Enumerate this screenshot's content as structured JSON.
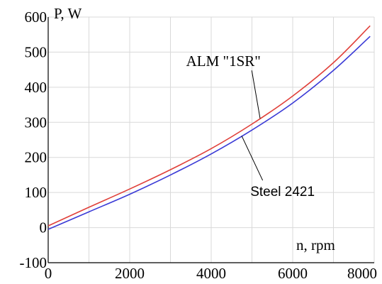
{
  "chart_data": {
    "type": "line",
    "xlabel": "n, rpm",
    "ylabel": "P, W",
    "xlim": [
      0,
      8000
    ],
    "ylim": [
      -100,
      600
    ],
    "xticks": [
      0,
      2000,
      4000,
      6000,
      8000
    ],
    "yticks": [
      -100,
      0,
      100,
      200,
      300,
      400,
      500,
      600
    ],
    "grid": true,
    "series": [
      {
        "name": "ALM \"1SR\"",
        "color": "#e0403a",
        "x": [
          0,
          1000,
          2000,
          3000,
          4000,
          5000,
          6000,
          7000,
          7900
        ],
        "y": [
          5,
          58,
          110,
          165,
          225,
          295,
          375,
          470,
          575
        ]
      },
      {
        "name": "Steel 2421",
        "color": "#3a3ad6",
        "x": [
          0,
          1000,
          2000,
          3000,
          4000,
          5000,
          6000,
          7000,
          7900
        ],
        "y": [
          -5,
          45,
          95,
          150,
          210,
          278,
          355,
          448,
          545
        ]
      }
    ],
    "annotations": [
      {
        "text": "ALM \"1SR\"",
        "target_series": 0,
        "target_x": 5200,
        "label_x": 4300,
        "label_y": 460,
        "style": "serif"
      },
      {
        "text": "Steel 2421",
        "target_series": 1,
        "target_x": 4750,
        "label_x": 5750,
        "label_y": 90,
        "style": "sans"
      }
    ]
  }
}
